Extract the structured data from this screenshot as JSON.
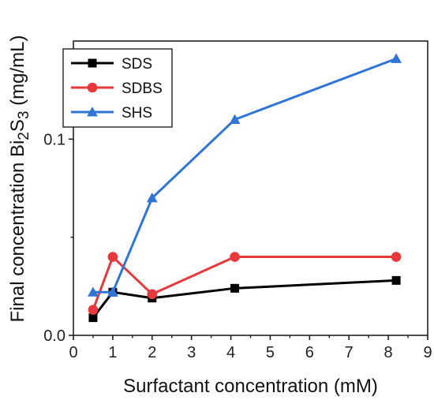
{
  "chart_data": {
    "type": "line",
    "xlabel": "Surfactant concentration (mM)",
    "ylabel_parts": [
      "Final concentration Bi",
      "2",
      "S",
      "3",
      " (mg/mL)"
    ],
    "xlim": [
      0,
      9
    ],
    "ylim": [
      0,
      0.15
    ],
    "x_ticks": [
      0,
      1,
      2,
      3,
      4,
      5,
      6,
      7,
      8,
      9
    ],
    "x_tick_labels": [
      "0",
      "1",
      "2",
      "3",
      "4",
      "5",
      "6",
      "7",
      "8",
      "9"
    ],
    "y_ticks": [
      0,
      0.1
    ],
    "y_tick_labels": [
      "0.0",
      "0.1"
    ],
    "grid": false,
    "legend_position": "top-left",
    "series": [
      {
        "name": "SDS",
        "color": "#000000",
        "marker": "square",
        "x": [
          0.5,
          1.0,
          2.0,
          4.1,
          8.2
        ],
        "y": [
          0.009,
          0.022,
          0.019,
          0.024,
          0.028
        ]
      },
      {
        "name": "SDBS",
        "color": "#e8383b",
        "marker": "circle",
        "x": [
          0.5,
          1.0,
          2.0,
          4.1,
          8.2
        ],
        "y": [
          0.013,
          0.04,
          0.021,
          0.04,
          0.04
        ]
      },
      {
        "name": "SHS",
        "color": "#2e75d6",
        "marker": "triangle",
        "x": [
          0.5,
          1.0,
          2.0,
          4.1,
          8.2
        ],
        "y": [
          0.022,
          0.022,
          0.07,
          0.11,
          0.141
        ]
      }
    ]
  }
}
